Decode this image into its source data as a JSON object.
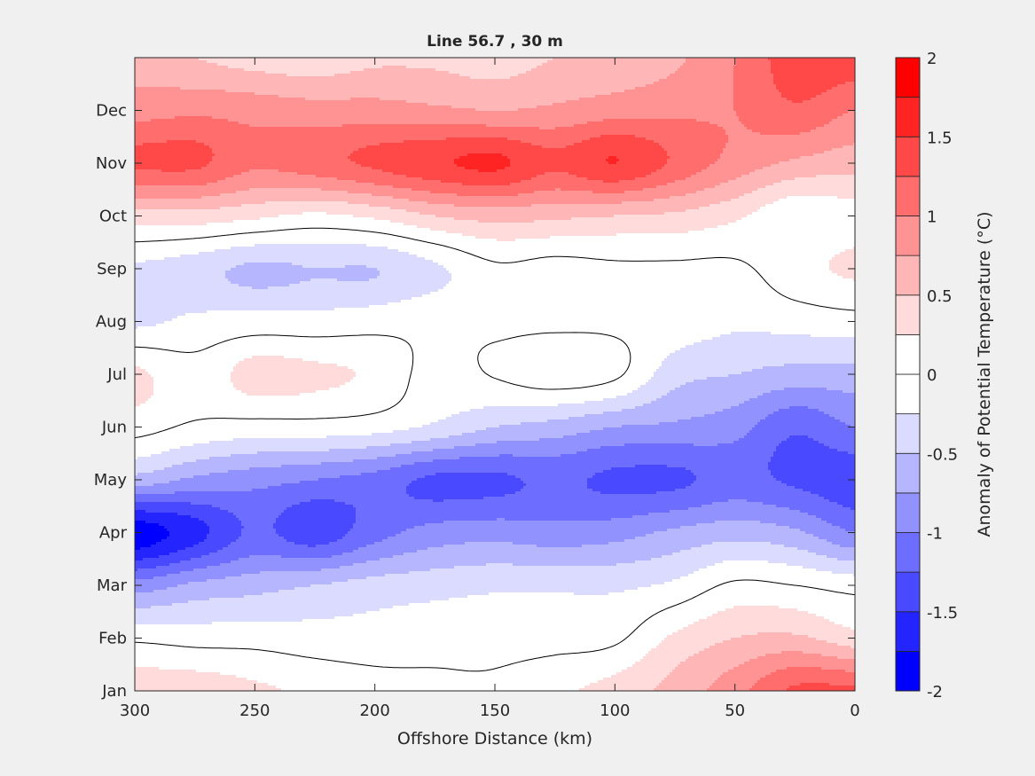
{
  "chart_data": {
    "type": "contourf",
    "title": "Line 56.7 , 30 m",
    "xlabel": "Offshore Distance (km)",
    "ylabel": "",
    "xlim": [
      300,
      0
    ],
    "x_reversed": true,
    "xticks": [
      300,
      250,
      200,
      150,
      100,
      50,
      0
    ],
    "xtick_labels": [
      "300",
      "250",
      "200",
      "150",
      "100",
      "50",
      "0"
    ],
    "ylim": [
      1,
      13
    ],
    "yticks": [
      1,
      2,
      3,
      4,
      5,
      6,
      7,
      8,
      9,
      10,
      11,
      12
    ],
    "ytick_labels": [
      "Jan",
      "Feb",
      "Mar",
      "Apr",
      "May",
      "Jun",
      "Jul",
      "Aug",
      "Sep",
      "Oct",
      "Nov",
      "Dec"
    ],
    "grid": false,
    "x": [
      300,
      275,
      250,
      225,
      200,
      175,
      150,
      125,
      100,
      75,
      50,
      25,
      0
    ],
    "y": [
      1,
      2,
      3,
      4,
      5,
      6,
      7,
      8,
      9,
      10,
      11,
      12,
      13
    ],
    "z": [
      [
        0.4,
        0.4,
        0.3,
        0.2,
        0.1,
        0.05,
        0.05,
        0.2,
        0.35,
        0.6,
        0.9,
        1.3,
        1.3
      ],
      [
        -0.05,
        -0.1,
        -0.1,
        -0.15,
        -0.15,
        -0.1,
        -0.1,
        -0.1,
        -0.05,
        0.3,
        0.5,
        0.55,
        0.35
      ],
      [
        -0.9,
        -0.7,
        -0.6,
        -0.5,
        -0.4,
        -0.35,
        -0.3,
        -0.3,
        -0.3,
        -0.2,
        0.05,
        0.0,
        -0.1
      ],
      [
        -1.9,
        -1.6,
        -1.2,
        -1.4,
        -1.1,
        -0.9,
        -0.85,
        -0.9,
        -0.85,
        -0.7,
        -0.6,
        -0.7,
        -1.0
      ],
      [
        -0.6,
        -0.8,
        -0.9,
        -1.0,
        -1.1,
        -1.3,
        -1.3,
        -1.2,
        -1.3,
        -1.3,
        -1.15,
        -1.3,
        -1.4
      ],
      [
        0.1,
        -0.05,
        -0.1,
        -0.1,
        -0.15,
        -0.3,
        -0.5,
        -0.6,
        -0.75,
        -0.8,
        -0.9,
        -1.2,
        -1.0
      ],
      [
        0.3,
        0.1,
        0.35,
        0.3,
        0.2,
        -0.1,
        0.02,
        0.15,
        0.05,
        -0.4,
        -0.5,
        -0.6,
        -0.6
      ],
      [
        -0.3,
        -0.2,
        -0.15,
        -0.15,
        -0.1,
        -0.05,
        -0.05,
        -0.05,
        -0.05,
        -0.1,
        -0.2,
        -0.15,
        -0.1
      ],
      [
        -0.3,
        -0.4,
        -0.55,
        -0.5,
        -0.5,
        -0.3,
        -0.05,
        -0.1,
        -0.05,
        -0.05,
        -0.05,
        0.15,
        0.3
      ],
      [
        0.4,
        0.4,
        0.3,
        0.2,
        0.3,
        0.5,
        0.6,
        0.55,
        0.5,
        0.45,
        0.3,
        0.05,
        0.15
      ],
      [
        1.3,
        1.3,
        1.05,
        1.15,
        1.3,
        1.45,
        1.55,
        1.3,
        1.5,
        1.2,
        0.9,
        0.7,
        0.6
      ],
      [
        0.9,
        0.95,
        0.9,
        0.85,
        0.85,
        0.8,
        0.75,
        0.8,
        0.9,
        0.95,
        1.0,
        1.2,
        1.0
      ],
      [
        0.6,
        0.5,
        0.4,
        0.35,
        0.45,
        0.45,
        0.4,
        0.5,
        0.55,
        0.7,
        1.0,
        1.4,
        1.4
      ]
    ],
    "contour_lines": [
      0
    ],
    "colorbar": {
      "label": "Anomaly of Potential Temperature (°C)",
      "limits": [
        -2,
        2
      ],
      "levels": [
        -2,
        -1.75,
        -1.5,
        -1.25,
        -1,
        -0.75,
        -0.5,
        -0.25,
        0,
        0.25,
        0.5,
        0.75,
        1,
        1.25,
        1.5,
        1.75,
        2
      ],
      "ticks": [
        2,
        1.5,
        1,
        0.5,
        0,
        -0.5,
        -1,
        -1.5,
        -2
      ],
      "tick_labels": [
        "2",
        "1.5",
        "1",
        "0.5",
        "0",
        "-0.5",
        "-1",
        "-1.5",
        "-2"
      ],
      "colors": [
        "#0000ff",
        "#2424ff",
        "#4949ff",
        "#6d6dff",
        "#9292ff",
        "#b6b6ff",
        "#dbdbff",
        "#ffffff",
        "#ffffff",
        "#ffdbdb",
        "#ffb6b6",
        "#ff9292",
        "#ff6d6d",
        "#ff4949",
        "#ff2424",
        "#ff0000"
      ]
    }
  }
}
